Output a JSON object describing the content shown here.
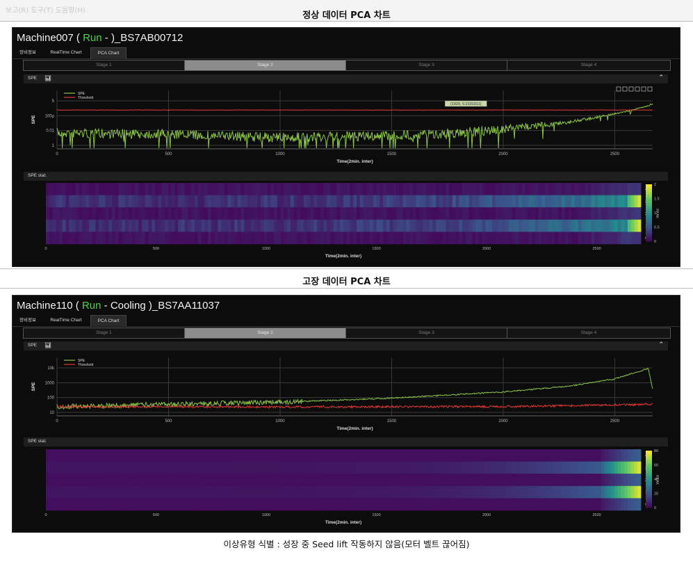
{
  "top_strip_text": "보고(R)  도구(T)  도움말(H)",
  "caption": "이상유형 식별 : 성장 중 Seed lift 작동하지 않음(모터 벨트 끊어짐)",
  "panels": [
    {
      "title": "정상 데이터 PCA 차트",
      "machine": {
        "name": "Machine007",
        "open": " ( ",
        "status": "Run",
        "rest": "  -  )_BS7AB00712"
      },
      "nav_tabs": [
        "장비정보",
        "RealTime Chart",
        "PCA Chart"
      ],
      "active_nav_tab": 2,
      "stages": [
        "Stage 1",
        "Stage 2",
        "Stage 3",
        "Stage 4"
      ],
      "active_stage": 1,
      "spe_bar_label": "SPE",
      "stat_bar_label": "SPE stat.",
      "tooltip": "(1920, 0.2101011)",
      "chart_data": {
        "type": "line",
        "xlabel": "Time(2min. inter)",
        "ylabel": "SPE",
        "x_ticks": [
          "0",
          "500",
          "1000",
          "1500",
          "2000",
          "2500"
        ],
        "y_ticks": [
          "5",
          "100μ",
          "0.01",
          "1"
        ],
        "xlim": [
          0,
          2670
        ],
        "log_scale": true,
        "grid": true,
        "legend_position": "top-left",
        "series": [
          {
            "name": "SPE",
            "color": "#8bc34a",
            "pattern": "noisy_then_rising",
            "points": [
              [
                0,
                0.012
              ],
              [
                500,
                0.01
              ],
              [
                1000,
                0.006
              ],
              [
                1500,
                0.008
              ],
              [
                1800,
                0.012
              ],
              [
                2000,
                0.02
              ],
              [
                2300,
                0.05
              ],
              [
                2500,
                0.15
              ],
              [
                2600,
                0.3
              ],
              [
                2670,
                0.6
              ]
            ]
          },
          {
            "name": "Threshold",
            "color": "#e53935",
            "pattern": "flat",
            "points": [
              [
                0,
                0.25
              ],
              [
                2670,
                0.25
              ]
            ]
          }
        ]
      },
      "heatmap": {
        "xlabel": "Time(2min. inter)",
        "ylabel": "RKAK",
        "x_ticks": [
          "0",
          "500",
          "1000",
          "1500",
          "2000",
          "2500"
        ],
        "y_ticks": [
          "4",
          "3",
          "2",
          "1",
          "0"
        ],
        "colorbar_ticks": [
          "2",
          "1.5",
          "1",
          "0.5",
          "0"
        ],
        "bright_rows": [
          1,
          3
        ]
      }
    },
    {
      "title": "고장 데이터 PCA 차트",
      "machine": {
        "name": "Machine110",
        "open": " ( ",
        "status": "Run",
        "rest": "  - Cooling  )_BS7AA11037"
      },
      "nav_tabs": [
        "장비정보",
        "RealTime Chart",
        "PCA Chart"
      ],
      "active_nav_tab": 2,
      "stages": [
        "Stage 1",
        "Stage 2",
        "Stage 3",
        "Stage 4"
      ],
      "active_stage": 1,
      "spe_bar_label": "SPE",
      "stat_bar_label": "SPE stat.",
      "tooltip": "",
      "chart_data": {
        "type": "line",
        "xlabel": "Time(2min. inter)",
        "ylabel": "SPE",
        "x_ticks": [
          "0",
          "500",
          "1000",
          "1500",
          "2000",
          "2500"
        ],
        "y_ticks": [
          "10k",
          "1000",
          "100",
          "10"
        ],
        "xlim": [
          0,
          2670
        ],
        "log_scale": true,
        "grid": true,
        "legend_position": "top-left",
        "series": [
          {
            "name": "SPE",
            "color": "#8bc34a",
            "pattern": "rising",
            "points": [
              [
                0,
                3
              ],
              [
                500,
                5
              ],
              [
                1000,
                8
              ],
              [
                1500,
                20
              ],
              [
                2000,
                80
              ],
              [
                2300,
                300
              ],
              [
                2500,
                1500
              ],
              [
                2650,
                15000
              ],
              [
                2670,
                150
              ]
            ]
          },
          {
            "name": "Threshold",
            "color": "#e53935",
            "pattern": "flat_noisy",
            "points": [
              [
                0,
                3
              ],
              [
                1000,
                2.8
              ],
              [
                2000,
                3
              ],
              [
                2670,
                5
              ]
            ]
          }
        ]
      },
      "heatmap": {
        "xlabel": "Time(2min. inter)",
        "ylabel": "RKAK",
        "x_ticks": [
          "0",
          "500",
          "1000",
          "1500",
          "2000",
          "2500"
        ],
        "y_ticks": [
          "4",
          "3",
          "2",
          "1",
          "0"
        ],
        "colorbar_ticks": [
          "80",
          "60",
          "40",
          "20",
          "0"
        ],
        "bright_rows": [
          1,
          3
        ]
      }
    }
  ]
}
